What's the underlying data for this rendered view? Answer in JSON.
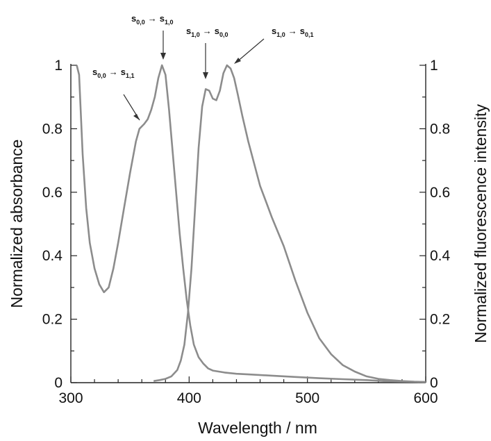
{
  "chart_data": {
    "type": "line",
    "xlabel": "Wavelength / nm",
    "ylabel_left": "Normalized absorbance",
    "ylabel_right": "Normalized fluorescence intensity",
    "xlim": [
      300,
      600
    ],
    "ylim": [
      0,
      1
    ],
    "x_ticks": [
      "300",
      "400",
      "500",
      "600"
    ],
    "y_ticks": [
      "0",
      "0.2",
      "0.4",
      "0.6",
      "0.8",
      "1"
    ],
    "line_color": "#8c8c8c",
    "grid": false,
    "series": [
      {
        "x": [
          305,
          307,
          310,
          313,
          316,
          320,
          324,
          328,
          332,
          336,
          340,
          345,
          350,
          355,
          358,
          362,
          365,
          368,
          371,
          374,
          377,
          380,
          383,
          386,
          389,
          392,
          395,
          398,
          401,
          404,
          408,
          412,
          416,
          420,
          430,
          440,
          450,
          470,
          490,
          510,
          530,
          550,
          570,
          600
        ],
        "y": [
          1.0,
          0.97,
          0.72,
          0.55,
          0.44,
          0.36,
          0.31,
          0.285,
          0.3,
          0.36,
          0.44,
          0.55,
          0.66,
          0.76,
          0.8,
          0.815,
          0.83,
          0.86,
          0.9,
          0.96,
          1.0,
          0.97,
          0.86,
          0.73,
          0.6,
          0.47,
          0.36,
          0.26,
          0.18,
          0.12,
          0.08,
          0.06,
          0.045,
          0.038,
          0.032,
          0.028,
          0.026,
          0.022,
          0.018,
          0.014,
          0.011,
          0.008,
          0.004,
          0.002
        ]
      },
      {
        "x": [
          370,
          375,
          380,
          385,
          390,
          393,
          396,
          399,
          402,
          405,
          408,
          411,
          414,
          417,
          420,
          423,
          426,
          429,
          432,
          435,
          438,
          441,
          445,
          450,
          455,
          460,
          465,
          470,
          480,
          490,
          500,
          510,
          520,
          530,
          540,
          550,
          560,
          570,
          580,
          590,
          600
        ],
        "y": [
          0.005,
          0.008,
          0.012,
          0.02,
          0.04,
          0.07,
          0.12,
          0.22,
          0.36,
          0.55,
          0.74,
          0.87,
          0.925,
          0.92,
          0.895,
          0.89,
          0.92,
          0.975,
          1.0,
          0.99,
          0.96,
          0.91,
          0.84,
          0.76,
          0.69,
          0.62,
          0.57,
          0.52,
          0.43,
          0.32,
          0.22,
          0.14,
          0.09,
          0.055,
          0.035,
          0.02,
          0.012,
          0.008,
          0.005,
          0.003,
          0.002
        ]
      }
    ],
    "annotations": [
      {
        "main1": "s",
        "sub1": "0,0",
        "arrow": "→",
        "main2": "s",
        "sub2": "1,1",
        "x": 361,
        "y": 0.81
      },
      {
        "main1": "s",
        "sub1": "0,0",
        "arrow": "→",
        "main2": "s",
        "sub2": "1,0",
        "x": 377,
        "y": 1.01
      },
      {
        "main1": "s",
        "sub1": "1,0",
        "arrow": "→",
        "main2": "s",
        "sub2": "0,0",
        "x": 414,
        "y": 0.93
      },
      {
        "main1": "s",
        "sub1": "1,0",
        "arrow": "→",
        "main2": "s",
        "sub2": "0,1",
        "x": 433,
        "y": 1.0
      }
    ]
  }
}
